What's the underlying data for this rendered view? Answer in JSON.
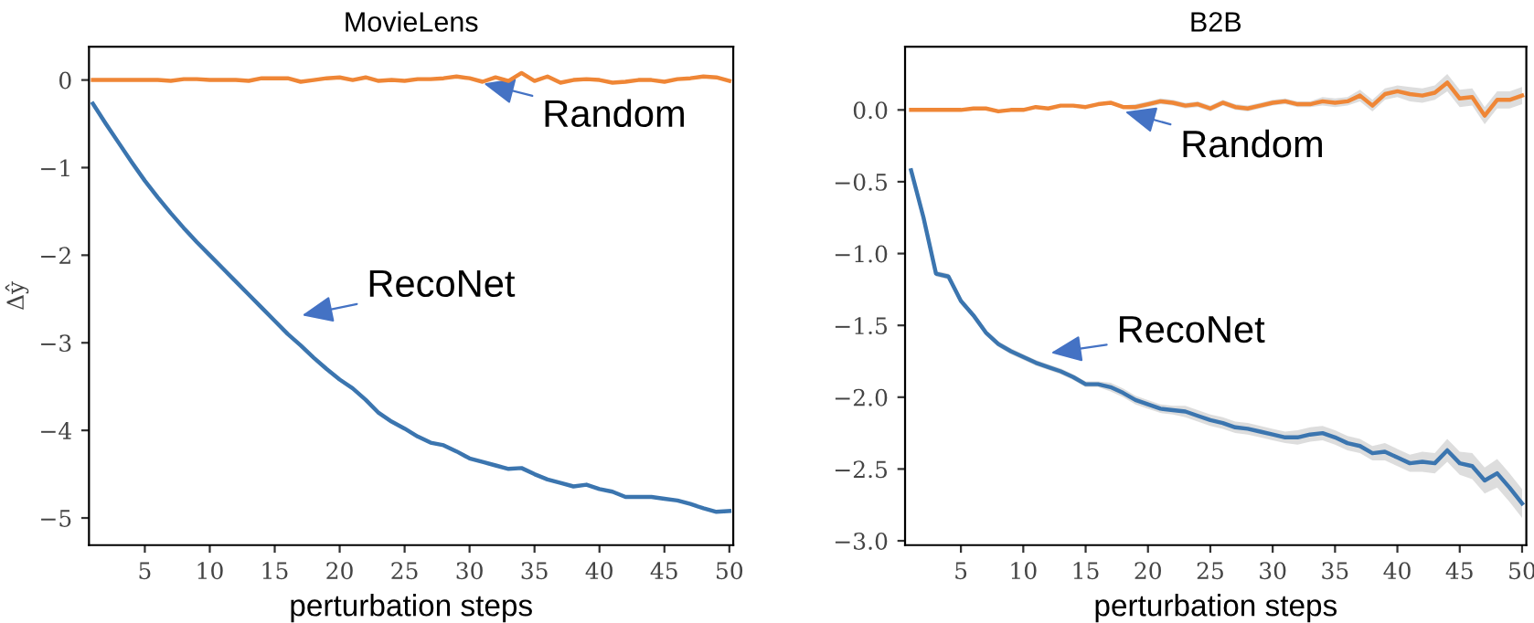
{
  "chart_data": [
    {
      "type": "line",
      "title": "MovieLens",
      "xlabel": "perturbation steps",
      "ylabel": "Δŷ",
      "x": [
        1,
        2,
        3,
        4,
        5,
        6,
        7,
        8,
        9,
        10,
        11,
        12,
        13,
        14,
        15,
        16,
        17,
        18,
        19,
        20,
        21,
        22,
        23,
        24,
        25,
        26,
        27,
        28,
        29,
        30,
        31,
        32,
        33,
        34,
        35,
        36,
        37,
        38,
        39,
        40,
        41,
        42,
        43,
        44,
        45,
        46,
        47,
        48,
        49,
        50
      ],
      "series": [
        {
          "name": "RecoNet",
          "color": "#3b75af",
          "values": [
            -0.27,
            -0.5,
            -0.72,
            -0.94,
            -1.15,
            -1.34,
            -1.52,
            -1.69,
            -1.85,
            -2.0,
            -2.15,
            -2.3,
            -2.45,
            -2.6,
            -2.75,
            -2.9,
            -3.03,
            -3.17,
            -3.3,
            -3.42,
            -3.52,
            -3.65,
            -3.8,
            -3.9,
            -3.98,
            -4.07,
            -4.14,
            -4.17,
            -4.24,
            -4.32,
            -4.36,
            -4.4,
            -4.44,
            -4.43,
            -4.5,
            -4.56,
            -4.6,
            -4.64,
            -4.62,
            -4.67,
            -4.7,
            -4.76,
            -4.76,
            -4.76,
            -4.78,
            -4.8,
            -4.84,
            -4.89,
            -4.93,
            -4.92
          ]
        },
        {
          "name": "Random",
          "color": "#ef8636",
          "values": [
            0.0,
            0.0,
            0.0,
            0.0,
            0.0,
            0.0,
            -0.01,
            0.01,
            0.01,
            0.0,
            0.0,
            0.0,
            -0.01,
            0.02,
            0.02,
            0.02,
            -0.02,
            0.0,
            0.02,
            0.03,
            0.0,
            0.03,
            -0.01,
            0.0,
            -0.01,
            0.01,
            0.01,
            0.02,
            0.04,
            0.02,
            -0.02,
            0.03,
            -0.01,
            0.08,
            -0.01,
            0.04,
            -0.03,
            0.0,
            0.01,
            0.0,
            -0.03,
            -0.02,
            0.0,
            0.0,
            -0.02,
            0.01,
            0.02,
            0.04,
            0.03,
            -0.01
          ]
        }
      ],
      "xlim": [
        0.7,
        50.3
      ],
      "ylim": [
        -5.31,
        0.38
      ],
      "xticks": [
        5,
        10,
        15,
        20,
        25,
        30,
        35,
        40,
        45,
        50
      ],
      "yticks": [
        {
          "value": 0,
          "label": "0"
        },
        {
          "value": -1,
          "label": "−1"
        },
        {
          "value": -2,
          "label": "−2"
        },
        {
          "value": -3,
          "label": "−3"
        },
        {
          "value": -4,
          "label": "−4"
        },
        {
          "value": -5,
          "label": "−5"
        }
      ]
    },
    {
      "type": "line",
      "title": "B2B",
      "xlabel": "perturbation steps",
      "x": [
        1,
        2,
        3,
        4,
        5,
        6,
        7,
        8,
        9,
        10,
        11,
        12,
        13,
        14,
        15,
        16,
        17,
        18,
        19,
        20,
        21,
        22,
        23,
        24,
        25,
        26,
        27,
        28,
        29,
        30,
        31,
        32,
        33,
        34,
        35,
        36,
        37,
        38,
        39,
        40,
        41,
        42,
        43,
        44,
        45,
        46,
        47,
        48,
        49,
        50
      ],
      "series": [
        {
          "name": "RecoNet",
          "color": "#3b75af",
          "values": [
            -0.42,
            -0.75,
            -1.14,
            -1.16,
            -1.33,
            -1.43,
            -1.55,
            -1.63,
            -1.68,
            -1.72,
            -1.76,
            -1.79,
            -1.82,
            -1.86,
            -1.91,
            -1.91,
            -1.93,
            -1.97,
            -2.02,
            -2.05,
            -2.08,
            -2.09,
            -2.1,
            -2.13,
            -2.16,
            -2.18,
            -2.21,
            -2.22,
            -2.24,
            -2.26,
            -2.28,
            -2.28,
            -2.26,
            -2.25,
            -2.28,
            -2.32,
            -2.34,
            -2.39,
            -2.38,
            -2.42,
            -2.46,
            -2.45,
            -2.46,
            -2.37,
            -2.46,
            -2.48,
            -2.58,
            -2.53,
            -2.63,
            -2.74
          ],
          "lower": [
            -0.44,
            -0.77,
            -1.16,
            -1.18,
            -1.35,
            -1.45,
            -1.57,
            -1.65,
            -1.7,
            -1.74,
            -1.78,
            -1.81,
            -1.84,
            -1.88,
            -1.93,
            -1.93,
            -1.96,
            -2.0,
            -2.05,
            -2.08,
            -2.11,
            -2.12,
            -2.14,
            -2.17,
            -2.2,
            -2.22,
            -2.25,
            -2.26,
            -2.28,
            -2.3,
            -2.32,
            -2.33,
            -2.31,
            -2.3,
            -2.33,
            -2.37,
            -2.39,
            -2.44,
            -2.44,
            -2.48,
            -2.52,
            -2.52,
            -2.53,
            -2.45,
            -2.54,
            -2.57,
            -2.67,
            -2.63,
            -2.73,
            -2.84
          ],
          "upper": [
            -0.4,
            -0.73,
            -1.12,
            -1.14,
            -1.31,
            -1.41,
            -1.53,
            -1.61,
            -1.66,
            -1.7,
            -1.74,
            -1.77,
            -1.8,
            -1.84,
            -1.89,
            -1.89,
            -1.9,
            -1.94,
            -1.99,
            -2.02,
            -2.05,
            -2.06,
            -2.06,
            -2.09,
            -2.12,
            -2.14,
            -2.17,
            -2.18,
            -2.2,
            -2.22,
            -2.24,
            -2.23,
            -2.21,
            -2.2,
            -2.23,
            -2.27,
            -2.29,
            -2.34,
            -2.32,
            -2.36,
            -2.4,
            -2.38,
            -2.39,
            -2.29,
            -2.38,
            -2.39,
            -2.49,
            -2.43,
            -2.53,
            -2.64
          ]
        },
        {
          "name": "Random",
          "color": "#ef8636",
          "values": [
            0.0,
            0.0,
            0.0,
            0.0,
            0.0,
            0.01,
            0.01,
            -0.01,
            0.0,
            0.0,
            0.02,
            0.01,
            0.03,
            0.03,
            0.02,
            0.04,
            0.05,
            0.02,
            0.02,
            0.04,
            0.06,
            0.05,
            0.03,
            0.04,
            0.01,
            0.05,
            0.02,
            0.01,
            0.03,
            0.05,
            0.06,
            0.04,
            0.04,
            0.06,
            0.05,
            0.06,
            0.1,
            0.03,
            0.11,
            0.13,
            0.11,
            0.1,
            0.12,
            0.19,
            0.08,
            0.09,
            -0.04,
            0.07,
            0.07,
            0.1
          ],
          "lower": [
            -0.01,
            -0.01,
            -0.01,
            -0.01,
            -0.01,
            0.0,
            0.0,
            -0.02,
            -0.01,
            -0.01,
            0.01,
            0.0,
            0.02,
            0.02,
            0.01,
            0.03,
            0.04,
            0.01,
            0.0,
            0.02,
            0.04,
            0.03,
            0.01,
            0.02,
            -0.01,
            0.03,
            0.0,
            -0.01,
            0.01,
            0.03,
            0.04,
            0.02,
            0.02,
            0.03,
            0.02,
            0.03,
            0.06,
            -0.01,
            0.07,
            0.09,
            0.06,
            0.05,
            0.07,
            0.13,
            0.02,
            0.03,
            -0.1,
            0.01,
            0.01,
            0.04
          ],
          "upper": [
            0.01,
            0.01,
            0.01,
            0.01,
            0.01,
            0.02,
            0.02,
            0.0,
            0.01,
            0.01,
            0.03,
            0.02,
            0.04,
            0.04,
            0.03,
            0.05,
            0.06,
            0.03,
            0.04,
            0.06,
            0.08,
            0.07,
            0.05,
            0.06,
            0.03,
            0.07,
            0.04,
            0.03,
            0.05,
            0.07,
            0.08,
            0.06,
            0.06,
            0.09,
            0.08,
            0.09,
            0.14,
            0.07,
            0.15,
            0.17,
            0.16,
            0.15,
            0.17,
            0.25,
            0.14,
            0.15,
            0.02,
            0.13,
            0.13,
            0.16
          ]
        }
      ],
      "xlim": [
        0.52,
        50.34
      ],
      "ylim": [
        -3.03,
        0.44
      ],
      "xticks": [
        5,
        10,
        15,
        20,
        25,
        30,
        35,
        40,
        45,
        50
      ],
      "yticks": [
        {
          "value": 0,
          "label": "0.0"
        },
        {
          "value": -0.5,
          "label": "−0.5"
        },
        {
          "value": -1,
          "label": "−1.0"
        },
        {
          "value": -1.5,
          "label": "−1.5"
        },
        {
          "value": -2,
          "label": "−2.0"
        },
        {
          "value": -2.5,
          "label": "−2.5"
        },
        {
          "value": -3,
          "label": "−3.0"
        }
      ]
    }
  ]
}
